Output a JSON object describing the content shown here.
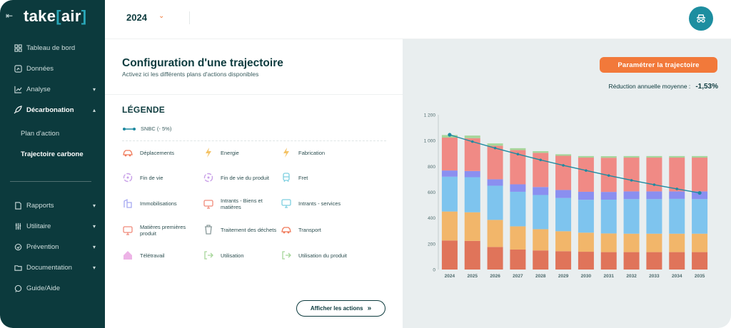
{
  "app": {
    "logo_main": "take",
    "logo_bracket_open": "[",
    "logo_accent": "air",
    "logo_bracket_close": "]"
  },
  "sidebar": {
    "items": [
      {
        "label": "Tableau de bord",
        "icon": "dashboard-icon"
      },
      {
        "label": "Données",
        "icon": "data-icon"
      },
      {
        "label": "Analyse",
        "icon": "chart-line-icon"
      },
      {
        "label": "Décarbonation",
        "icon": "rocket-icon"
      },
      {
        "label": "Rapports",
        "icon": "document-icon"
      },
      {
        "label": "Utilitaire",
        "icon": "sliders-icon"
      },
      {
        "label": "Prévention",
        "icon": "hand-heart-icon"
      },
      {
        "label": "Documentation",
        "icon": "folder-icon"
      },
      {
        "label": "Guide/Aide",
        "icon": "chat-icon"
      }
    ],
    "subitems": [
      {
        "label": "Plan d'action"
      },
      {
        "label": "Trajectoire carbone"
      }
    ]
  },
  "topbar": {
    "year": "2024"
  },
  "config": {
    "title": "Configuration d'une trajectoire",
    "subtitle": "Activez ici les différents plans d'actions disponibles",
    "legend_title": "LÉGENDE",
    "snbc_label": "SNBC (- 5%)",
    "legend_items": [
      {
        "label": "Déplacements",
        "icon": "car-icon",
        "color": "#f07a5a"
      },
      {
        "label": "Energie",
        "icon": "lightning-icon",
        "color": "#f2b84b"
      },
      {
        "label": "Fabrication",
        "icon": "lightning-icon",
        "color": "#f2b84b"
      },
      {
        "label": "Fin de vie",
        "icon": "recycle-icon",
        "color": "#c9a0e8"
      },
      {
        "label": "Fin de vie du produit",
        "icon": "recycle-icon",
        "color": "#c9a0e8"
      },
      {
        "label": "Fret",
        "icon": "train-icon",
        "color": "#7dcfe0"
      },
      {
        "label": "Immobilisations",
        "icon": "building-icon",
        "color": "#a6a9f2"
      },
      {
        "label": "Intrants - Biens et matières",
        "icon": "monitor-icon",
        "color": "#f08a7a"
      },
      {
        "label": "Intrants - services",
        "icon": "monitor-icon",
        "color": "#7dcfe0"
      },
      {
        "label": "Matières premières produit",
        "icon": "monitor-icon",
        "color": "#f08a7a"
      },
      {
        "label": "Traitement des déchets",
        "icon": "trash-icon",
        "color": "#8a9a9b"
      },
      {
        "label": "Transport",
        "icon": "car-icon",
        "color": "#f07a5a"
      },
      {
        "label": "Télétravail",
        "icon": "house-icon",
        "color": "#e8a0e0"
      },
      {
        "label": "Utilisation",
        "icon": "exit-icon",
        "color": "#a6d69a"
      },
      {
        "label": "Utilisation du produit",
        "icon": "exit-icon",
        "color": "#a6d69a"
      }
    ],
    "actions_button": "Afficher les actions",
    "actions_arrow": "»"
  },
  "trajectory": {
    "param_button": "Paramétrer la trajectoire",
    "reduction_label": "Réduction annuelle moyenne :",
    "reduction_value": "-1,53%"
  },
  "chart_data": {
    "type": "bar",
    "stacked": true,
    "categories": [
      "2024",
      "2025",
      "2026",
      "2027",
      "2028",
      "2029",
      "2030",
      "2031",
      "2032",
      "2033",
      "2034",
      "2035"
    ],
    "ylim": [
      0,
      1200
    ],
    "yticks": [
      0,
      200,
      400,
      600,
      800,
      1000,
      1200
    ],
    "ytick_labels": [
      "0",
      "200",
      "400",
      "600",
      "800",
      "1 000",
      "1 200"
    ],
    "series": [
      {
        "color": "#e0745a",
        "values": [
          225,
          222,
          175,
          155,
          148,
          142,
          138,
          135,
          135,
          135,
          135,
          135
        ]
      },
      {
        "color": "#f2b66a",
        "values": [
          225,
          222,
          210,
          180,
          165,
          155,
          148,
          145,
          143,
          143,
          143,
          143
        ]
      },
      {
        "color": "#7ec4ee",
        "values": [
          270,
          272,
          265,
          268,
          265,
          258,
          255,
          262,
          268,
          268,
          270,
          268
        ]
      },
      {
        "color": "#8a8ff0",
        "values": [
          48,
          48,
          50,
          58,
          62,
          62,
          62,
          60,
          60,
          60,
          58,
          60
        ]
      },
      {
        "color": "#f08a85",
        "values": [
          255,
          255,
          260,
          265,
          265,
          265,
          265,
          265,
          262,
          262,
          262,
          262
        ]
      },
      {
        "color": "#a6d69a",
        "values": [
          20,
          20,
          18,
          15,
          13,
          12,
          12,
          12,
          12,
          12,
          12,
          12
        ]
      }
    ],
    "line": {
      "color": "#1f8aa0",
      "values": [
        1045,
        992,
        942,
        895,
        850,
        808,
        768,
        729,
        692,
        658,
        625,
        594
      ]
    }
  }
}
